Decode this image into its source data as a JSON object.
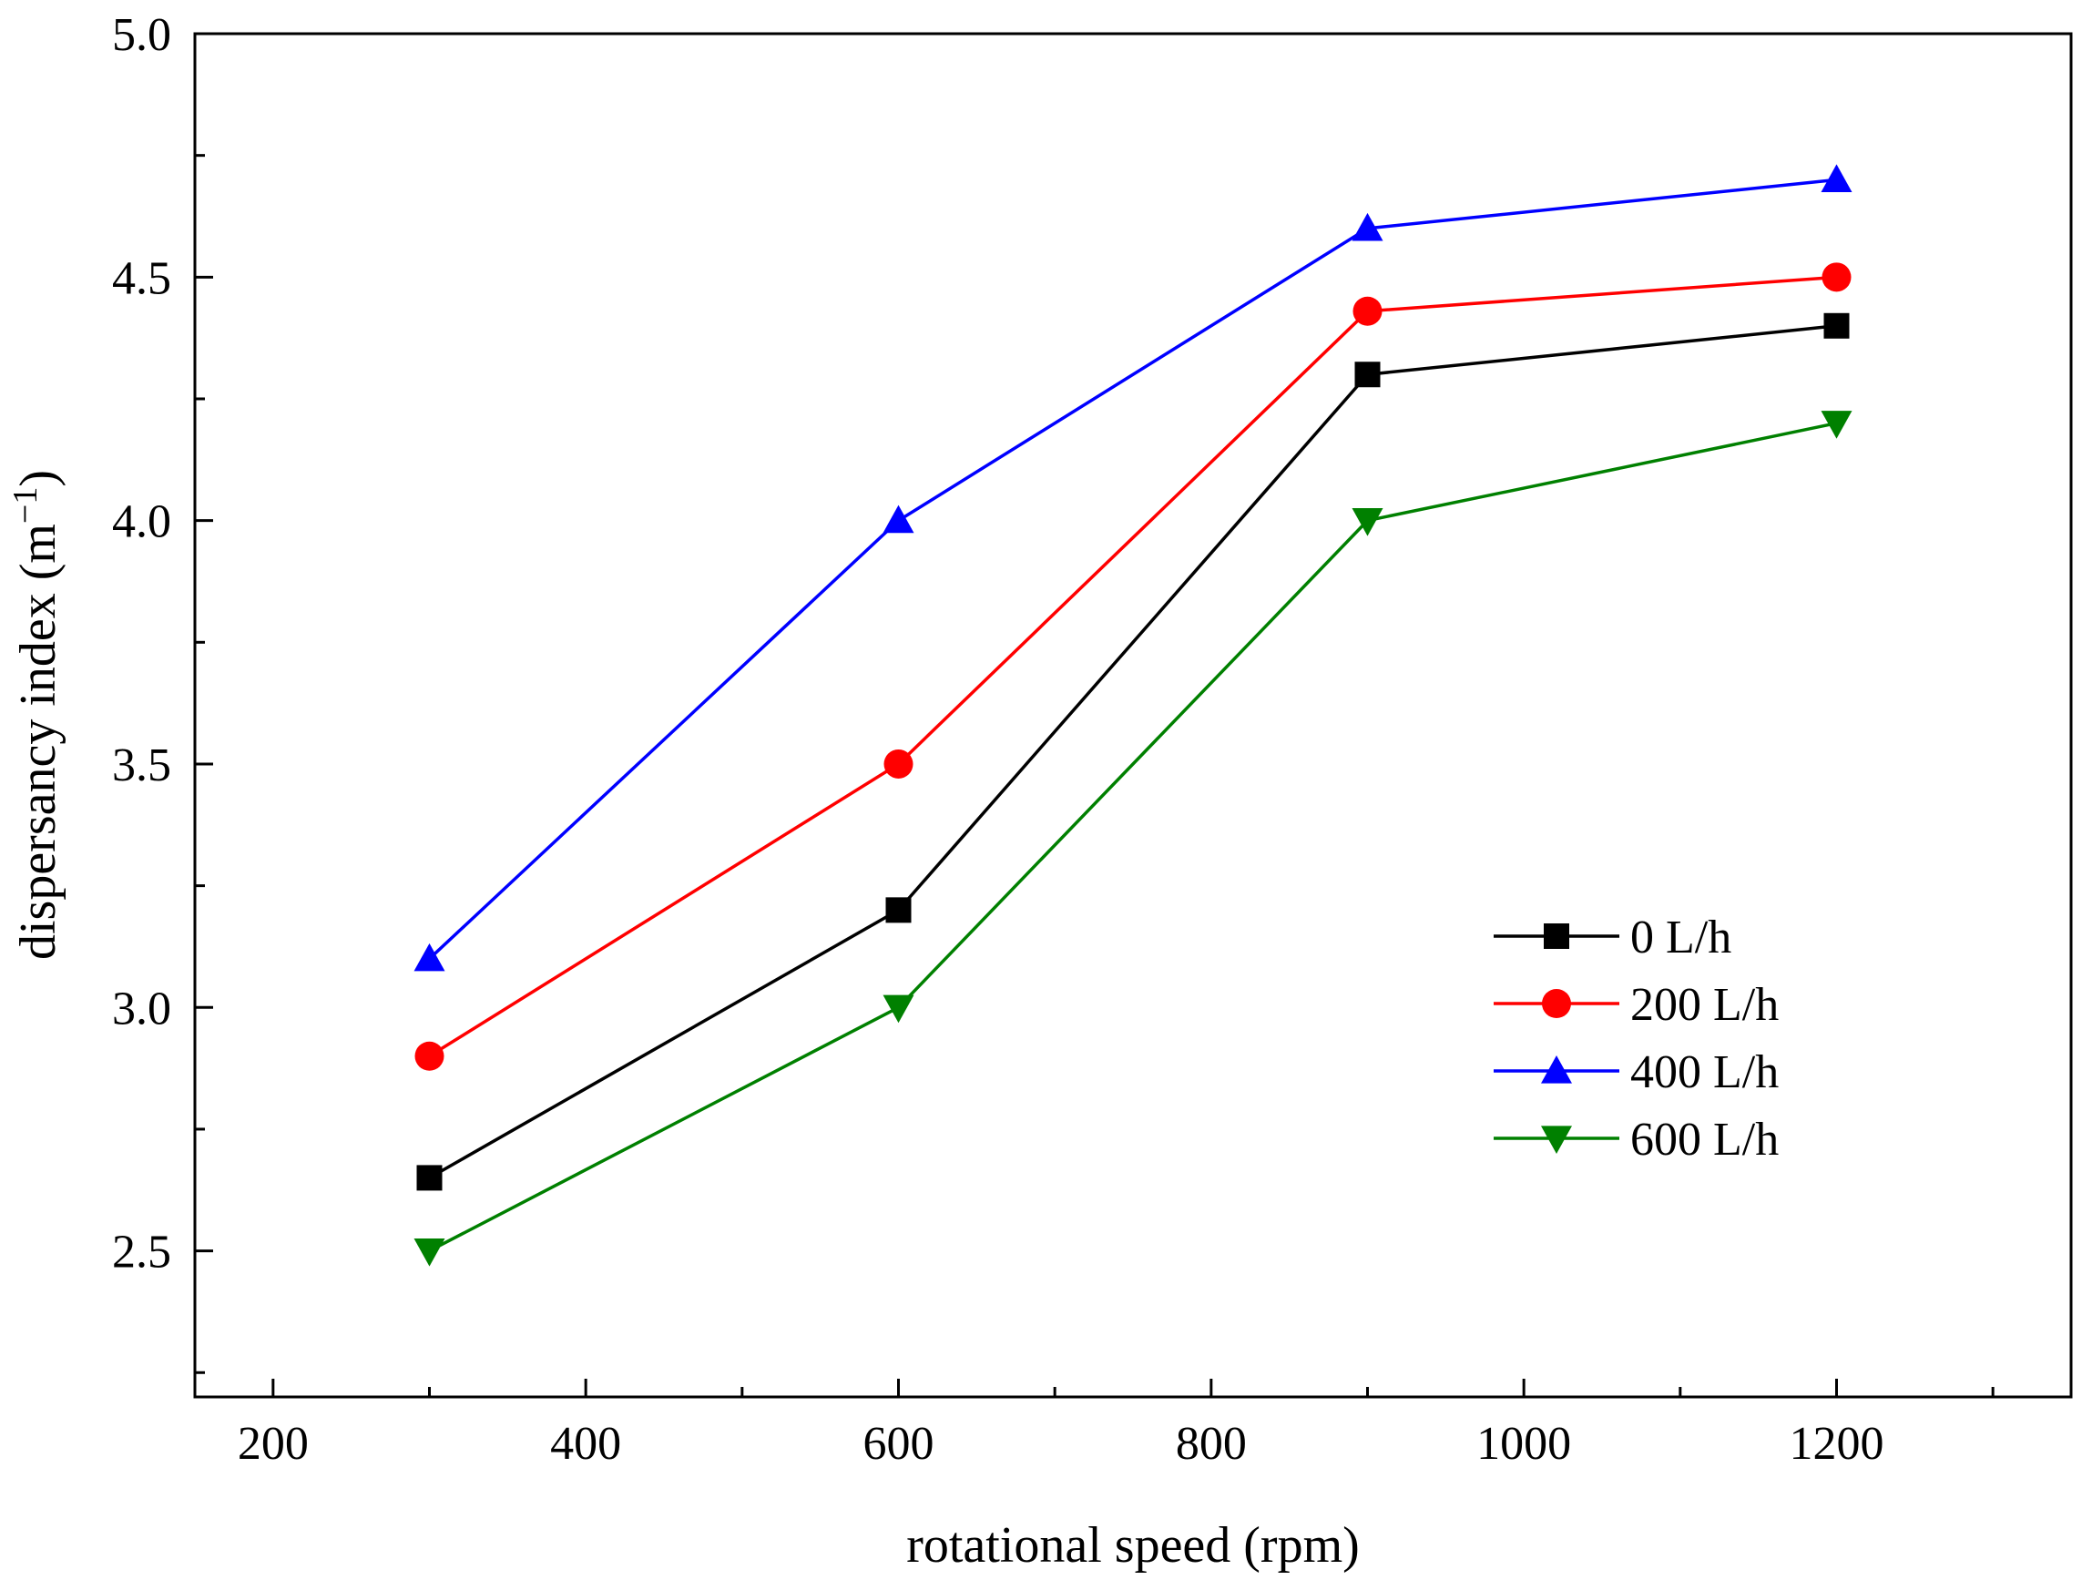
{
  "chart_data": {
    "type": "line",
    "title": "",
    "xlabel": "rotational speed (rpm)",
    "ylabel_main": "dispersancy index (m",
    "ylabel_sup": "−1",
    "ylabel_end": ")",
    "xlim": [
      150,
      1350
    ],
    "ylim": [
      2.2,
      5.0
    ],
    "x_ticks": [
      200,
      400,
      600,
      800,
      1000,
      1200
    ],
    "x_tick_labels": [
      "200",
      "400",
      "600",
      "800",
      "1000",
      "1200"
    ],
    "y_ticks": [
      2.5,
      3.0,
      3.5,
      4.0,
      4.5,
      5.0
    ],
    "y_tick_labels": [
      "2.5",
      "3.0",
      "3.5",
      "4.0",
      "4.5",
      "5.0"
    ],
    "x": [
      300,
      600,
      900,
      1200
    ],
    "legend_position": "lower-right",
    "series": [
      {
        "name": "0 L/h",
        "values": [
          2.65,
          3.2,
          4.3,
          4.4
        ],
        "color": "#000000",
        "marker": "square"
      },
      {
        "name": "200 L/h",
        "values": [
          2.9,
          3.5,
          4.43,
          4.5
        ],
        "color": "#ff0000",
        "marker": "circle"
      },
      {
        "name": "400 L/h",
        "values": [
          3.1,
          4.0,
          4.6,
          4.7
        ],
        "color": "#0000ff",
        "marker": "triangle-up"
      },
      {
        "name": "600 L/h",
        "values": [
          2.5,
          3.0,
          4.0,
          4.2
        ],
        "color": "#008000",
        "marker": "triangle-down"
      }
    ]
  }
}
